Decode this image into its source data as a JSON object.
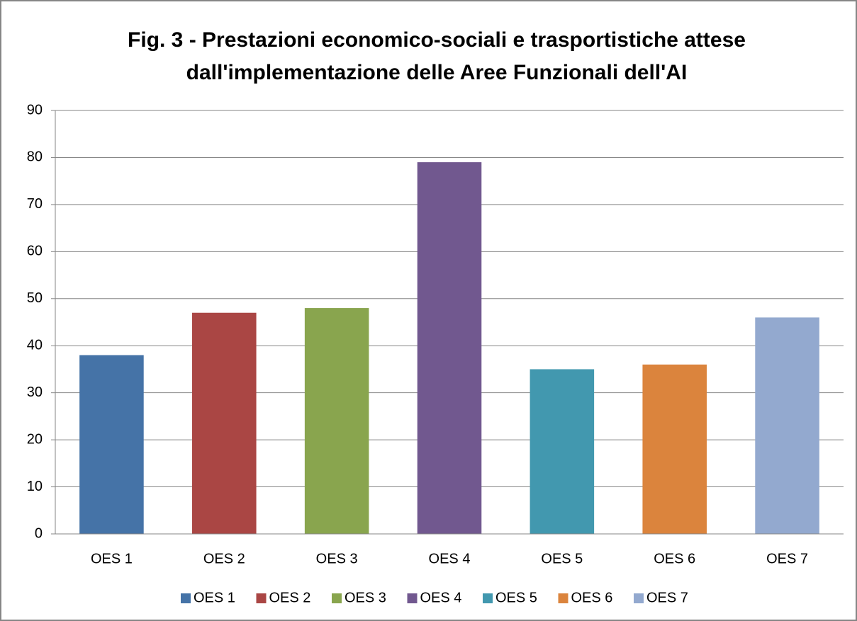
{
  "chart_data": {
    "type": "bar",
    "title": [
      "Fig. 3 - Prestazioni economico-sociali e trasportistiche attese",
      "dall'implementazione delle Aree Funzionali dell'AI"
    ],
    "categories": [
      "OES 1",
      "OES 2",
      "OES 3",
      "OES 4",
      "OES 5",
      "OES 6",
      "OES 7"
    ],
    "values": [
      38,
      47,
      48,
      79,
      35,
      36,
      46
    ],
    "colors": [
      "#4573a7",
      "#aa4644",
      "#89a54e",
      "#71588f",
      "#4298af",
      "#db843d",
      "#93a9cf"
    ],
    "ylim": [
      0,
      90
    ],
    "yticks": [
      0,
      10,
      20,
      30,
      40,
      50,
      60,
      70,
      80,
      90
    ],
    "grid": true,
    "legend": "bottom"
  }
}
